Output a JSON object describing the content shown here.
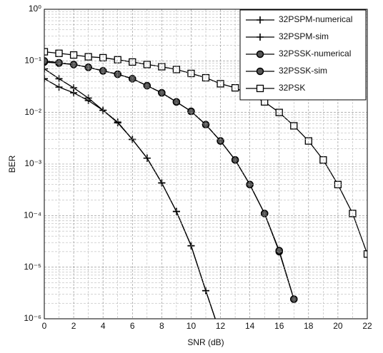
{
  "chart_data": {
    "type": "line",
    "xlabel": "SNR (dB)",
    "ylabel": "BER",
    "log_y": true,
    "grid": true,
    "minor_grid": true,
    "legend": "upper right",
    "color": "#000000",
    "x": [
      0,
      1,
      2,
      3,
      4,
      5,
      6,
      7,
      8,
      9,
      10,
      11,
      12,
      13,
      14,
      15,
      16,
      17,
      18,
      19,
      20,
      21,
      22
    ],
    "series": [
      {
        "name": "32PSPM-numerical",
        "marker": "plus",
        "values": [
          0.07,
          0.045,
          0.03,
          0.019,
          0.011,
          0.0065,
          0.003,
          0.0013,
          0.00043,
          0.00012,
          2.6e-05,
          3.5e-06,
          5e-07,
          null,
          null,
          null,
          null,
          null,
          null,
          null,
          null,
          null,
          null
        ]
      },
      {
        "name": "32PSPM-sim",
        "marker": "plus",
        "values": [
          0.045,
          0.031,
          0.024,
          0.017,
          0.011,
          0.0063,
          0.003,
          0.0013,
          0.00043,
          0.00012,
          2.6e-05,
          3.5e-06,
          5e-07,
          null,
          null,
          null,
          null,
          null,
          null,
          null,
          null,
          null,
          null
        ]
      },
      {
        "name": "32PSSK-numerical",
        "marker": "circle",
        "values": [
          0.095,
          0.09,
          0.085,
          0.075,
          0.064,
          0.055,
          0.045,
          0.033,
          0.024,
          0.016,
          0.0105,
          0.0058,
          0.0028,
          0.0012,
          0.0004,
          0.00011,
          2e-05,
          2.4e-06,
          null,
          null,
          null,
          null,
          null
        ]
      },
      {
        "name": "32PSSK-sim",
        "marker": "circle",
        "values": [
          0.1,
          0.092,
          0.085,
          0.075,
          0.064,
          0.055,
          0.045,
          0.033,
          0.024,
          0.016,
          0.0105,
          0.0058,
          0.0028,
          0.0012,
          0.0004,
          0.00011,
          2.1e-05,
          2.4e-06,
          null,
          null,
          null,
          null,
          null
        ]
      },
      {
        "name": "32PSK",
        "marker": "square",
        "values": [
          0.15,
          0.14,
          0.13,
          0.12,
          0.115,
          0.105,
          0.095,
          0.085,
          0.077,
          0.068,
          0.057,
          0.047,
          0.036,
          0.03,
          0.022,
          0.016,
          0.01,
          0.0055,
          0.0028,
          0.0012,
          0.0004,
          0.00011,
          1.8e-05
        ]
      }
    ],
    "xlim": [
      0,
      22
    ],
    "xticks": [
      0,
      2,
      4,
      6,
      8,
      10,
      12,
      14,
      16,
      18,
      20,
      22
    ],
    "ylim": [
      1e-06,
      1
    ],
    "yticks": [
      {
        "value": 1e-06,
        "label": "10⁻⁶"
      },
      {
        "value": 1e-05,
        "label": "10⁻⁵"
      },
      {
        "value": 0.0001,
        "label": "10⁻⁴"
      },
      {
        "value": 0.001,
        "label": "10⁻³"
      },
      {
        "value": 0.01,
        "label": "10⁻²"
      },
      {
        "value": 0.1,
        "label": "10⁻¹"
      },
      {
        "value": 1,
        "label": "10⁰"
      }
    ]
  }
}
